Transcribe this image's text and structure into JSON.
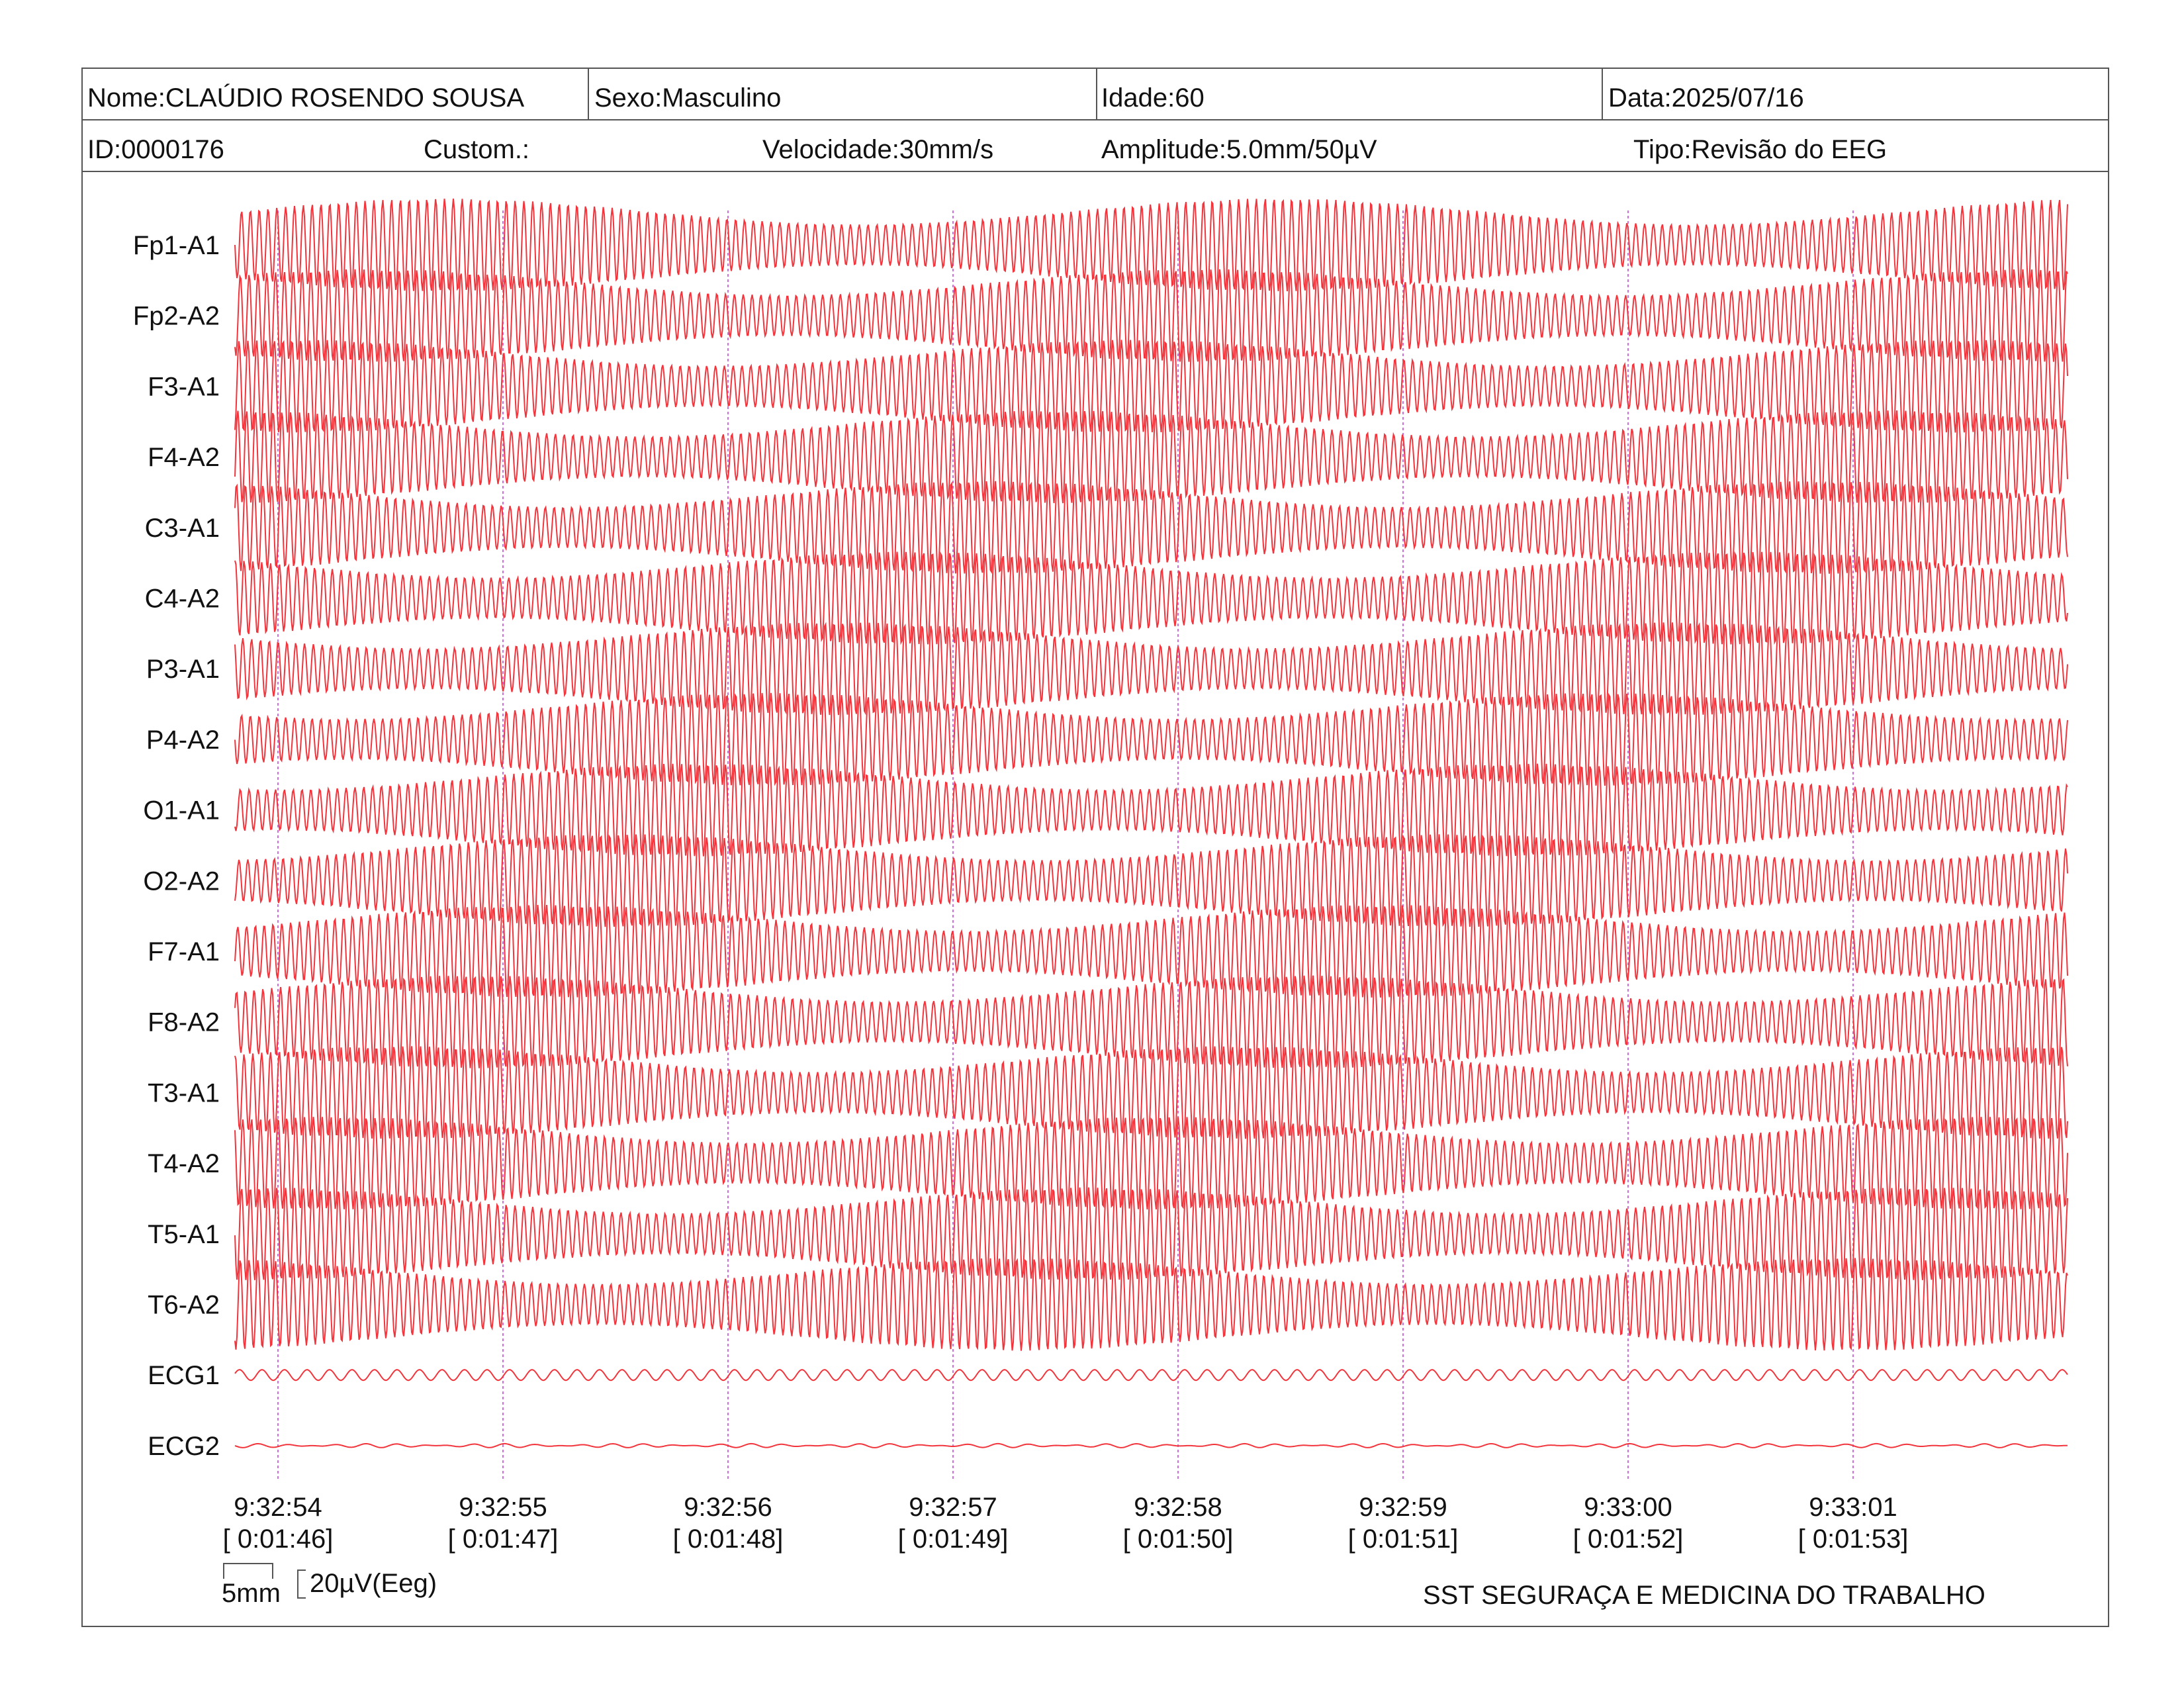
{
  "header": {
    "nome": "Nome:CLAÚDIO ROSENDO SOUSA",
    "sexo": "Sexo:Masculino",
    "idade": "Idade:60",
    "data": "Data:2025/07/16",
    "id": "ID:0000176",
    "custom": "Custom.:",
    "velocidade": "Velocidade:30mm/s",
    "amplitude": "Amplitude:5.0mm/50µV",
    "tipo": "Tipo:Revisão do EEG"
  },
  "footer": {
    "company": "SST SEGURAÇA E MEDICINA DO TRABALHO",
    "scale_time": "5mm",
    "scale_amp": "20µV(Eeg)"
  },
  "colors": {
    "trace": "#f2353c",
    "marker": "#d070e0",
    "border": "#555555"
  },
  "chart_data": {
    "type": "line",
    "channels": [
      "Fp1-A1",
      "Fp2-A2",
      "F3-A1",
      "F4-A2",
      "C3-A1",
      "C4-A2",
      "P3-A1",
      "P4-A2",
      "O1-A1",
      "O2-A2",
      "F7-A1",
      "F8-A2",
      "T3-A1",
      "T4-A2",
      "T5-A1",
      "T6-A2",
      "ECG1",
      "ECG2"
    ],
    "time_marks": [
      {
        "clock": "9:32:54",
        "elapsed": "[ 0:01:46]"
      },
      {
        "clock": "9:32:55",
        "elapsed": "[ 0:01:47]"
      },
      {
        "clock": "9:32:56",
        "elapsed": "[ 0:01:48]"
      },
      {
        "clock": "9:32:57",
        "elapsed": "[ 0:01:49]"
      },
      {
        "clock": "9:32:58",
        "elapsed": "[ 0:01:50]"
      },
      {
        "clock": "9:32:59",
        "elapsed": "[ 0:01:51]"
      },
      {
        "clock": "9:33:00",
        "elapsed": "[ 0:01:52]"
      },
      {
        "clock": "9:33:01",
        "elapsed": "[ 0:01:53]"
      }
    ],
    "speed_mm_per_s": 30,
    "sensitivity": "5.0mm/50µV",
    "eeg_cycles_per_second": 25.5,
    "ecg1_cycles_per_second": 10
  }
}
